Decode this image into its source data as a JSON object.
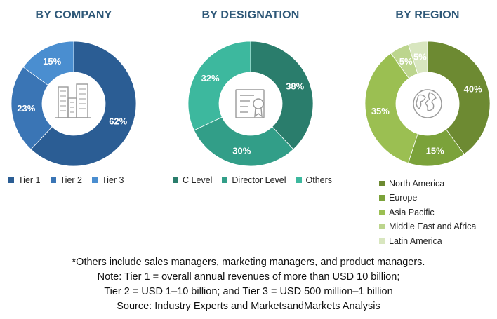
{
  "chart_data": [
    {
      "type": "pie",
      "title": "BY COMPANY",
      "categories": [
        "Tier 1",
        "Tier 2",
        "Tier 3"
      ],
      "values": [
        62,
        23,
        15
      ],
      "value_labels": [
        "62%",
        "23%",
        "15%"
      ],
      "colors": [
        "#2b5d94",
        "#3a75b5",
        "#4a8ed0"
      ],
      "center_icon": "buildings-icon",
      "legend_position": "bottom"
    },
    {
      "type": "pie",
      "title": "BY DESIGNATION",
      "categories": [
        "C Level",
        "Director Level",
        "Others"
      ],
      "values": [
        38,
        30,
        32
      ],
      "value_labels": [
        "38%",
        "30%",
        "32%"
      ],
      "colors": [
        "#2a7d6c",
        "#329e88",
        "#3db89e"
      ],
      "center_icon": "certificate-icon",
      "legend_position": "bottom"
    },
    {
      "type": "pie",
      "title": "BY REGION",
      "categories": [
        "North America",
        "Europe",
        "Asia Pacific",
        "Middle East and Africa",
        "Latin America"
      ],
      "values": [
        40,
        15,
        35,
        5,
        5
      ],
      "value_labels": [
        "40%",
        "15%",
        "35%",
        "5%",
        "5%"
      ],
      "colors": [
        "#6d8a32",
        "#7ba23a",
        "#9bbf52",
        "#bcd58d",
        "#d8e6bf"
      ],
      "center_icon": "globe-icon",
      "legend_position": "bottom-right"
    }
  ],
  "notes": [
    "*Others include sales managers, marketing managers, and product managers.",
    "Note: Tier 1 = overall annual revenues of more than USD 10 billion;",
    "Tier 2 = USD 1–10 billion; and Tier 3 = USD 500 million–1 billion",
    "Source: Industry Experts and MarketsandMarkets Analysis"
  ]
}
